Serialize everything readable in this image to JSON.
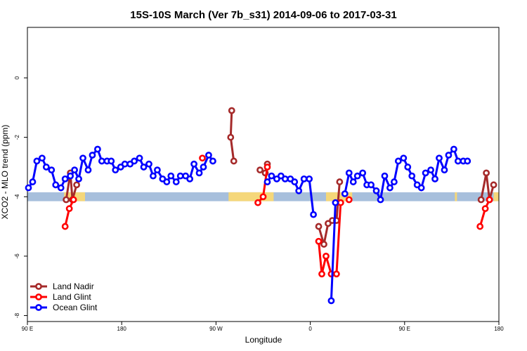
{
  "chart_data": {
    "type": "line",
    "title": "15S-10S March (Ver 7b_s31)   2014-09-06 to 2017-03-31",
    "xlabel": "Longitude",
    "ylabel": "XCO2 - MLO trend (ppm)",
    "xlim": [
      90,
      540
    ],
    "ylim": [
      -8.2,
      1.7
    ],
    "xticks": [
      {
        "value": 90,
        "label": "90 E"
      },
      {
        "value": 180,
        "label": "180"
      },
      {
        "value": 270,
        "label": "90 W"
      },
      {
        "value": 360,
        "label": "0"
      },
      {
        "value": 450,
        "label": "90 E"
      },
      {
        "value": 540,
        "label": "180"
      }
    ],
    "yticks": [
      {
        "value": 0,
        "label": "0"
      },
      {
        "value": -2,
        "label": "-2"
      },
      {
        "value": -4,
        "label": "-4"
      },
      {
        "value": -6,
        "label": "-6"
      },
      {
        "value": -8,
        "label": "-8"
      }
    ],
    "grid": false,
    "legend_position": "bottom-left",
    "background_band": {
      "y_range": [
        -4.15,
        -3.85
      ],
      "color": "#a7bfdc",
      "land_color": "#f5d77a",
      "land_segments": [
        [
          125,
          145
        ],
        [
          282,
          325
        ],
        [
          375,
          400
        ],
        [
          498,
          500
        ],
        [
          535,
          540
        ]
      ]
    },
    "series": [
      {
        "name": "Land Nadir",
        "color": "#a52a2a",
        "segments": [
          [
            [
              127,
              -4.1
            ],
            [
              131,
              -3.2
            ],
            [
              133,
              -4.1
            ],
            [
              137,
              -3.6
            ]
          ],
          [
            [
              285,
              -1.1
            ],
            [
              284,
              -2.0
            ],
            [
              287,
              -2.8
            ]
          ],
          [
            [
              312,
              -3.1
            ],
            [
              317,
              -3.2
            ],
            [
              319,
              -2.9
            ]
          ],
          [
            [
              368,
              -5.0
            ],
            [
              373,
              -5.6
            ],
            [
              377,
              -4.9
            ],
            [
              381,
              -4.8
            ],
            [
              385,
              -4.8
            ],
            [
              388,
              -3.5
            ]
          ],
          [
            [
              523,
              -4.1
            ],
            [
              528,
              -3.2
            ],
            [
              531,
              -4.1
            ],
            [
              535,
              -3.6
            ]
          ]
        ]
      },
      {
        "name": "Land Glint",
        "color": "#ff0000",
        "segments": [
          [
            [
              126,
              -5.0
            ],
            [
              130,
              -4.4
            ],
            [
              134,
              -4.1
            ]
          ],
          [
            [
              257,
              -2.7
            ]
          ],
          [
            [
              310,
              -4.2
            ],
            [
              315,
              -4.0
            ],
            [
              319,
              -3.0
            ]
          ],
          [
            [
              368,
              -5.5
            ],
            [
              371,
              -6.6
            ],
            [
              375,
              -6.0
            ],
            [
              380,
              -6.6
            ],
            [
              385,
              -6.6
            ],
            [
              389,
              -4.2
            ]
          ],
          [
            [
              397,
              -4.1
            ]
          ],
          [
            [
              522,
              -5.0
            ],
            [
              527,
              -4.4
            ],
            [
              531,
              -4.1
            ]
          ]
        ]
      },
      {
        "name": "Ocean Glint",
        "color": "#0000ff",
        "segments": [
          [
            [
              91,
              -3.7
            ],
            [
              95,
              -3.5
            ],
            [
              99,
              -2.8
            ],
            [
              104,
              -2.7
            ],
            [
              108,
              -3.0
            ],
            [
              113,
              -3.1
            ],
            [
              117,
              -3.6
            ],
            [
              122,
              -3.7
            ],
            [
              126,
              -3.4
            ],
            [
              131,
              -3.3
            ],
            [
              135,
              -3.1
            ],
            [
              139,
              -3.4
            ],
            [
              143,
              -2.7
            ],
            [
              148,
              -3.1
            ],
            [
              152,
              -2.6
            ],
            [
              157,
              -2.4
            ],
            [
              161,
              -2.8
            ],
            [
              166,
              -2.8
            ],
            [
              170,
              -2.8
            ],
            [
              174,
              -3.1
            ],
            [
              179,
              -3.0
            ],
            [
              183,
              -2.9
            ],
            [
              188,
              -2.9
            ],
            [
              192,
              -2.8
            ],
            [
              197,
              -2.7
            ],
            [
              201,
              -3.0
            ],
            [
              206,
              -2.9
            ],
            [
              210,
              -3.3
            ],
            [
              214,
              -3.1
            ],
            [
              219,
              -3.4
            ],
            [
              223,
              -3.5
            ],
            [
              227,
              -3.3
            ],
            [
              232,
              -3.5
            ],
            [
              236,
              -3.3
            ],
            [
              241,
              -3.3
            ],
            [
              245,
              -3.4
            ],
            [
              249,
              -2.9
            ],
            [
              254,
              -3.2
            ],
            [
              258,
              -3.0
            ],
            [
              263,
              -2.6
            ],
            [
              267,
              -2.8
            ]
          ],
          [
            [
              319,
              -3.5
            ],
            [
              323,
              -3.3
            ],
            [
              328,
              -3.4
            ],
            [
              332,
              -3.3
            ],
            [
              336,
              -3.4
            ],
            [
              341,
              -3.4
            ],
            [
              345,
              -3.5
            ],
            [
              349,
              -3.8
            ],
            [
              354,
              -3.4
            ],
            [
              359,
              -3.4
            ],
            [
              363,
              -4.6
            ]
          ],
          [
            [
              380,
              -7.5
            ],
            [
              384,
              -4.2
            ]
          ],
          [
            [
              393,
              -3.9
            ],
            [
              397,
              -3.2
            ],
            [
              401,
              -3.5
            ],
            [
              405,
              -3.3
            ],
            [
              410,
              -3.2
            ],
            [
              414,
              -3.6
            ],
            [
              418,
              -3.6
            ],
            [
              423,
              -3.8
            ],
            [
              427,
              -4.1
            ],
            [
              431,
              -3.3
            ],
            [
              436,
              -3.7
            ],
            [
              440,
              -3.5
            ],
            [
              444,
              -2.8
            ],
            [
              449,
              -2.7
            ],
            [
              453,
              -3.0
            ],
            [
              457,
              -3.3
            ],
            [
              462,
              -3.6
            ],
            [
              466,
              -3.7
            ],
            [
              470,
              -3.2
            ],
            [
              475,
              -3.1
            ],
            [
              479,
              -3.4
            ],
            [
              483,
              -2.7
            ],
            [
              488,
              -3.1
            ],
            [
              492,
              -2.6
            ],
            [
              497,
              -2.4
            ],
            [
              501,
              -2.8
            ],
            [
              506,
              -2.8
            ],
            [
              510,
              -2.8
            ]
          ]
        ]
      }
    ]
  }
}
